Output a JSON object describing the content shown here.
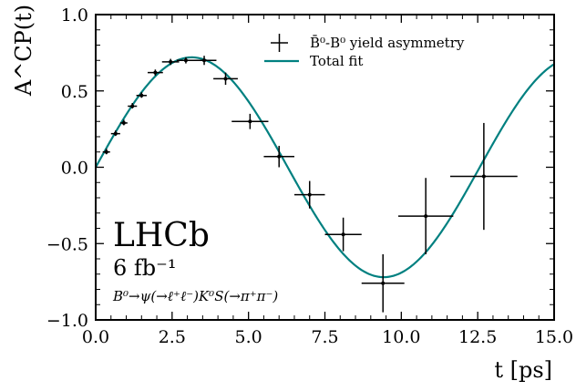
{
  "chart_data": {
    "type": "scatter",
    "title": "",
    "xlabel": "t [ps]",
    "ylabel": "A^CP(t)",
    "xlim": [
      0,
      15
    ],
    "ylim": [
      -1,
      1
    ],
    "grid": false,
    "legend_position": "top-right",
    "x_ticks": [
      "0.0",
      "2.5",
      "5.0",
      "7.5",
      "10.0",
      "12.5",
      "15.0"
    ],
    "y_ticks": [
      "−1.0",
      "−0.5",
      "0.0",
      "0.5",
      "1.0"
    ],
    "series": [
      {
        "name": "B̄⁰-B⁰ yield asymmetry",
        "kind": "errorbar",
        "color": "#000000",
        "points": [
          {
            "x": 0.35,
            "y": 0.1,
            "xerr": 0.12,
            "yerr": 0.015
          },
          {
            "x": 0.65,
            "y": 0.22,
            "xerr": 0.15,
            "yerr": 0.015
          },
          {
            "x": 0.92,
            "y": 0.29,
            "xerr": 0.12,
            "yerr": 0.015
          },
          {
            "x": 1.2,
            "y": 0.4,
            "xerr": 0.15,
            "yerr": 0.015
          },
          {
            "x": 1.5,
            "y": 0.47,
            "xerr": 0.17,
            "yerr": 0.015
          },
          {
            "x": 1.95,
            "y": 0.62,
            "xerr": 0.25,
            "yerr": 0.02
          },
          {
            "x": 2.45,
            "y": 0.69,
            "xerr": 0.28,
            "yerr": 0.02
          },
          {
            "x": 2.95,
            "y": 0.7,
            "xerr": 0.3,
            "yerr": 0.02
          },
          {
            "x": 3.55,
            "y": 0.7,
            "xerr": 0.4,
            "yerr": 0.03
          },
          {
            "x": 4.25,
            "y": 0.58,
            "xerr": 0.4,
            "yerr": 0.04
          },
          {
            "x": 5.05,
            "y": 0.3,
            "xerr": 0.6,
            "yerr": 0.05
          },
          {
            "x": 6.0,
            "y": 0.07,
            "xerr": 0.5,
            "yerr": 0.07
          },
          {
            "x": 7.0,
            "y": -0.18,
            "xerr": 0.5,
            "yerr": 0.09
          },
          {
            "x": 8.1,
            "y": -0.44,
            "xerr": 0.6,
            "yerr": 0.11
          },
          {
            "x": 9.4,
            "y": -0.76,
            "xerr": 0.7,
            "yerr": 0.19
          },
          {
            "x": 10.8,
            "y": -0.32,
            "xerr": 0.9,
            "yerr": 0.25
          },
          {
            "x": 12.7,
            "y": -0.06,
            "xerr": 1.1,
            "yerr": 0.35
          }
        ]
      },
      {
        "name": "Total fit",
        "kind": "line",
        "color": "#008080",
        "function": "0.72*sin(0.5*x)",
        "x_range": [
          0,
          15
        ]
      }
    ],
    "annotations": {
      "experiment": "LHCb",
      "luminosity": "6 fb⁻¹",
      "decay": "B⁰→ψ(→ℓ⁺ℓ⁻)K⁰S(→π⁺π⁻)"
    }
  }
}
